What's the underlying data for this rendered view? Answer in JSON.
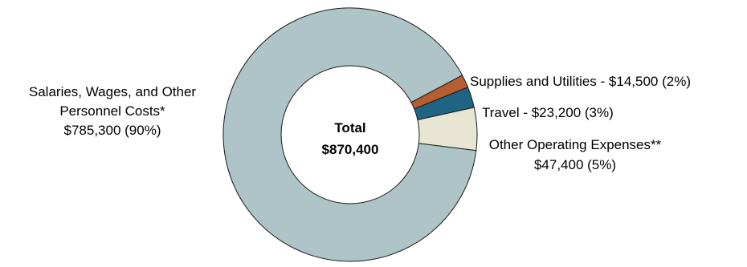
{
  "chart_data": {
    "type": "pie",
    "donut": true,
    "center_label": {
      "line1": "Total",
      "line2": "$870,400"
    },
    "slices": [
      {
        "label_lines": [
          "Supplies and Utilities - $14,500 (2%)"
        ],
        "value": 14500,
        "color": "#B65D32"
      },
      {
        "label_lines": [
          "Travel - $23,200 (3%)"
        ],
        "value": 23200,
        "color": "#1F6482"
      },
      {
        "label_lines": [
          "Other Operating Expenses**",
          "$47,400 (5%)"
        ],
        "value": 47400,
        "color": "#E8E6D3"
      },
      {
        "label_lines": [
          "Salaries, Wages, and Other",
          "Personnel Costs*",
          "$785,300 (90%)"
        ],
        "value": 785300,
        "color": "#AFC4C6"
      }
    ]
  }
}
